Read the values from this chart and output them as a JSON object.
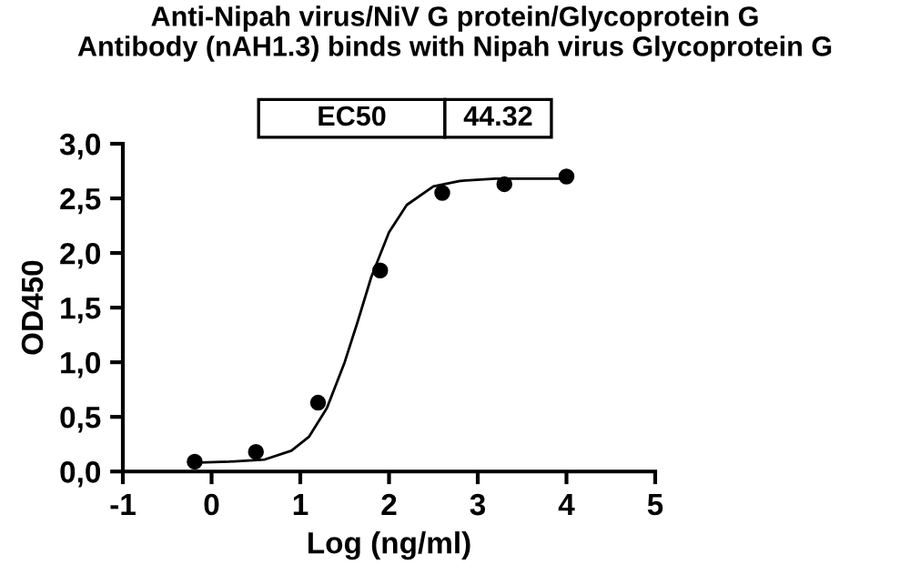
{
  "chart_data": {
    "type": "scatter",
    "title": "Anti-Nipah virus/NiV G protein/Glycoprotein G\nAntibody (nAH1.3) binds with Nipah virus Glycoprotein G",
    "xlabel": "Log (ng/ml)",
    "ylabel": "OD450",
    "series": [
      {
        "color": "#000000",
        "marker": "circle",
        "x": [
          -0.19,
          0.5,
          1.2,
          1.9,
          2.6,
          3.3,
          4.0
        ],
        "values": [
          0.09,
          0.18,
          0.63,
          1.84,
          2.55,
          2.63,
          2.7
        ]
      },
      {
        "type": "line",
        "color": "#000000",
        "marker": "none",
        "line_style": "solid",
        "x": [
          -0.2,
          0.2,
          0.6,
          0.9,
          1.1,
          1.3,
          1.5,
          1.65,
          1.8,
          2.0,
          2.2,
          2.5,
          2.8,
          3.2,
          4.0
        ],
        "values": [
          0.08,
          0.09,
          0.11,
          0.19,
          0.32,
          0.58,
          1.0,
          1.38,
          1.78,
          2.19,
          2.44,
          2.61,
          2.66,
          2.68,
          2.68
        ]
      }
    ],
    "annotations": [
      "EC50",
      "44.32"
    ],
    "xlim": [
      -1,
      5
    ],
    "xticks": [
      {
        "value": -1,
        "label": "-1"
      },
      0,
      1,
      2,
      3,
      4,
      5
    ],
    "ylim": [
      0,
      3
    ],
    "yticks": [
      {
        "value": 0,
        "label": "0,0"
      },
      {
        "value": 0.5,
        "label": "0,5"
      },
      {
        "value": 1,
        "label": "1,0"
      },
      {
        "value": 1.5,
        "label": "1,5"
      },
      {
        "value": 2,
        "label": "2,0"
      },
      {
        "value": 2.5,
        "label": "2,5"
      },
      {
        "value": 3,
        "label": "3,0"
      }
    ],
    "grid": false,
    "legend": false
  }
}
